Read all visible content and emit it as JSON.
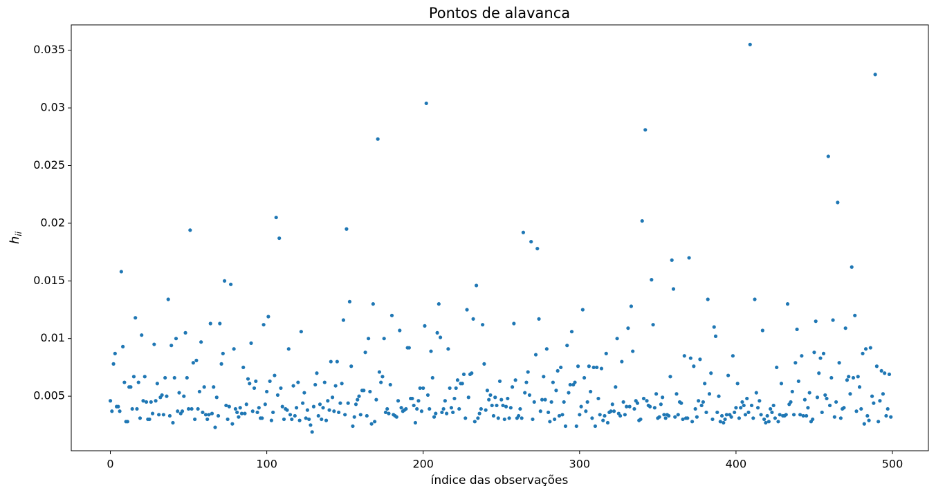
{
  "chart_data": {
    "type": "scatter",
    "title": "Pontos de alavanca",
    "xlabel": "índice das observações",
    "ylabel": "h",
    "ylabel_sub": "ii",
    "color": "#1f77b4",
    "xlim": [
      -25,
      523
    ],
    "ylim": [
      0.00027,
      0.0372
    ],
    "xticks": [
      0,
      100,
      200,
      300,
      400,
      500
    ],
    "yticks": [
      0.005,
      0.01,
      {
        "value": 0.015,
        "label": "0.015"
      },
      0.02,
      0.025,
      0.03,
      0.035
    ],
    "x": [
      0,
      1,
      2,
      3,
      4,
      5,
      6,
      7,
      8,
      9,
      10,
      11,
      12,
      13,
      14,
      15,
      16,
      17,
      18,
      19,
      20,
      21,
      22,
      23,
      24,
      25,
      26,
      27,
      28,
      29,
      30,
      31,
      32,
      33,
      34,
      35,
      36,
      37,
      38,
      39,
      40,
      41,
      42,
      43,
      44,
      45,
      46,
      47,
      48,
      49,
      50,
      51,
      52,
      53,
      54,
      55,
      56,
      57,
      58,
      59,
      60,
      61,
      62,
      63,
      64,
      65,
      66,
      67,
      68,
      69,
      70,
      71,
      72,
      73,
      74,
      75,
      76,
      77,
      78,
      79,
      80,
      81,
      82,
      83,
      84,
      85,
      86,
      87,
      88,
      89,
      90,
      91,
      92,
      93,
      94,
      95,
      96,
      97,
      98,
      99,
      100,
      101,
      102,
      103,
      104,
      105,
      106,
      107,
      108,
      109,
      110,
      111,
      112,
      113,
      114,
      115,
      116,
      117,
      118,
      119,
      120,
      121,
      122,
      123,
      124,
      125,
      126,
      127,
      128,
      129,
      130,
      131,
      132,
      133,
      134,
      135,
      136,
      137,
      138,
      139,
      140,
      141,
      142,
      143,
      144,
      145,
      146,
      147,
      148,
      149,
      150,
      151,
      152,
      153,
      154,
      155,
      156,
      157,
      158,
      159,
      160,
      161,
      162,
      163,
      164,
      165,
      166,
      167,
      168,
      169,
      170,
      171,
      172,
      173,
      174,
      175,
      176,
      177,
      178,
      179,
      180,
      181,
      182,
      183,
      184,
      185,
      186,
      187,
      188,
      189,
      190,
      191,
      192,
      193,
      194,
      195,
      196,
      197,
      198,
      199,
      200,
      201,
      202,
      203,
      204,
      205,
      206,
      207,
      208,
      209,
      210,
      211,
      212,
      213,
      214,
      215,
      216,
      217,
      218,
      219,
      220,
      221,
      222,
      223,
      224,
      225,
      226,
      227,
      228,
      229,
      230,
      231,
      232,
      233,
      234,
      235,
      236,
      237,
      238,
      239,
      240,
      241,
      242,
      243,
      244,
      245,
      246,
      247,
      248,
      249,
      250,
      251,
      252,
      253,
      254,
      255,
      256,
      257,
      258,
      259,
      260,
      261,
      262,
      263,
      264,
      265,
      266,
      267,
      268,
      269,
      270,
      271,
      272,
      273,
      274,
      275,
      276,
      277,
      278,
      279,
      280,
      281,
      282,
      283,
      284,
      285,
      286,
      287,
      288,
      289,
      290,
      291,
      292,
      293,
      294,
      295,
      296,
      297,
      298,
      299,
      300,
      301,
      302,
      303,
      304,
      305,
      306,
      307,
      308,
      309,
      310,
      311,
      312,
      313,
      314,
      315,
      316,
      317,
      318,
      319,
      320,
      321,
      322,
      323,
      324,
      325,
      326,
      327,
      328,
      329,
      330,
      331,
      332,
      333,
      334,
      335,
      336,
      337,
      338,
      339,
      340,
      341,
      342,
      343,
      344,
      345,
      346,
      347,
      348,
      349,
      350,
      351,
      352,
      353,
      354,
      355,
      356,
      357,
      358,
      359,
      360,
      361,
      362,
      363,
      364,
      365,
      366,
      367,
      368,
      369,
      370,
      371,
      372,
      373,
      374,
      375,
      376,
      377,
      378,
      379,
      380,
      381,
      382,
      383,
      384,
      385,
      386,
      387,
      388,
      389,
      390,
      391,
      392,
      393,
      394,
      395,
      396,
      397,
      398,
      399,
      400,
      401,
      402,
      403,
      404,
      405,
      406,
      407,
      408,
      409,
      410,
      411,
      412,
      413,
      414,
      415,
      416,
      417,
      418,
      419,
      420,
      421,
      422,
      423,
      424,
      425,
      426,
      427,
      428,
      429,
      430,
      431,
      432,
      433,
      434,
      435,
      436,
      437,
      438,
      439,
      440,
      441,
      442,
      443,
      444,
      445,
      446,
      447,
      448,
      449,
      450,
      451,
      452,
      453,
      454,
      455,
      456,
      457,
      458,
      459,
      460,
      461,
      462,
      463,
      464,
      465,
      466,
      467,
      468,
      469,
      470,
      471,
      472,
      473,
      474,
      475,
      476,
      477,
      478,
      479,
      480,
      481,
      482,
      483,
      484,
      485,
      486,
      487,
      488,
      489,
      490,
      491,
      492,
      493,
      494,
      495,
      496,
      497,
      498,
      499
    ],
    "values": [
      0.0046,
      0.0037,
      0.0078,
      0.0087,
      0.0041,
      0.0041,
      0.0037,
      0.0158,
      0.0093,
      0.0062,
      0.0028,
      0.0028,
      0.0058,
      0.0058,
      0.0039,
      0.0067,
      0.0118,
      0.0039,
      0.0062,
      0.0031,
      0.0103,
      0.0046,
      0.0067,
      0.0045,
      0.003,
      0.003,
      0.0045,
      0.0035,
      0.0095,
      0.0046,
      0.0061,
      0.0034,
      0.0049,
      0.0051,
      0.0034,
      0.0066,
      0.005,
      0.0134,
      0.0033,
      0.0094,
      0.0027,
      0.0066,
      0.01,
      0.0037,
      0.0053,
      0.0035,
      0.0037,
      0.005,
      0.0105,
      0.0066,
      0.0039,
      0.0194,
      0.0039,
      0.0079,
      0.003,
      0.0081,
      0.0039,
      0.0054,
      0.0097,
      0.0036,
      0.0058,
      0.0034,
      0.003,
      0.0034,
      0.0113,
      0.0035,
      0.0058,
      0.0023,
      0.0049,
      0.0033,
      0.0113,
      0.0078,
      0.0087,
      0.015,
      0.0042,
      0.003,
      0.0041,
      0.0147,
      0.0026,
      0.0091,
      0.0039,
      0.0036,
      0.0032,
      0.004,
      0.0035,
      0.0075,
      0.0035,
      0.0043,
      0.0065,
      0.0061,
      0.0096,
      0.0037,
      0.0057,
      0.0063,
      0.0036,
      0.004,
      0.0031,
      0.0031,
      0.0112,
      0.0043,
      0.0054,
      0.0119,
      0.0063,
      0.0029,
      0.0036,
      0.0068,
      0.0205,
      0.0051,
      0.0187,
      0.0057,
      0.0041,
      0.003,
      0.0039,
      0.0038,
      0.0091,
      0.0034,
      0.003,
      0.0059,
      0.0033,
      0.004,
      0.0062,
      0.0029,
      0.0106,
      0.0044,
      0.0053,
      0.0031,
      0.0038,
      0.003,
      0.0025,
      0.0019,
      0.0041,
      0.006,
      0.007,
      0.0033,
      0.0043,
      0.003,
      0.004,
      0.0062,
      0.0029,
      0.0046,
      0.0038,
      0.008,
      0.0049,
      0.0037,
      0.0059,
      0.008,
      0.0036,
      0.0044,
      0.0061,
      0.0116,
      0.0034,
      0.0195,
      0.0044,
      0.0132,
      0.0076,
      0.0024,
      0.0032,
      0.0043,
      0.0047,
      0.005,
      0.0034,
      0.0055,
      0.0055,
      0.0088,
      0.0033,
      0.01,
      0.0054,
      0.0026,
      0.013,
      0.0028,
      0.0047,
      0.0273,
      0.0071,
      0.0062,
      0.0067,
      0.01,
      0.0036,
      0.0039,
      0.0035,
      0.006,
      0.012,
      0.0034,
      0.0033,
      0.0032,
      0.0046,
      0.0107,
      0.004,
      0.0037,
      0.0038,
      0.0039,
      0.0092,
      0.0092,
      0.0048,
      0.0048,
      0.0042,
      0.0027,
      0.0039,
      0.0046,
      0.0057,
      0.0037,
      0.0057,
      0.0111,
      0.0304,
      0.0051,
      0.0039,
      0.0089,
      0.0066,
      0.0032,
      0.0035,
      0.0105,
      0.013,
      0.0101,
      0.0036,
      0.0039,
      0.0046,
      0.0035,
      0.0091,
      0.0057,
      0.004,
      0.0036,
      0.0048,
      0.0057,
      0.0064,
      0.0039,
      0.0061,
      0.0061,
      0.0069,
      0.0031,
      0.0125,
      0.0049,
      0.0069,
      0.007,
      0.0117,
      0.0028,
      0.0146,
      0.0031,
      0.0035,
      0.0039,
      0.0112,
      0.0078,
      0.0038,
      0.0055,
      0.0047,
      0.0051,
      0.0042,
      0.0033,
      0.0049,
      0.0042,
      0.0031,
      0.0063,
      0.0047,
      0.0042,
      0.003,
      0.0041,
      0.0048,
      0.0031,
      0.004,
      0.0058,
      0.0113,
      0.0064,
      0.0031,
      0.0033,
      0.0039,
      0.0031,
      0.0192,
      0.0053,
      0.0062,
      0.0071,
      0.0051,
      0.0184,
      0.003,
      0.0045,
      0.0086,
      0.0178,
      0.0117,
      0.0037,
      0.0047,
      0.0067,
      0.0047,
      0.0091,
      0.0036,
      0.0028,
      0.0045,
      0.0062,
      0.003,
      0.0055,
      0.0072,
      0.0033,
      0.0075,
      0.0034,
      0.0045,
      0.0024,
      0.0094,
      0.0053,
      0.006,
      0.0106,
      0.006,
      0.0062,
      0.0024,
      0.0076,
      0.0034,
      0.0041,
      0.0125,
      0.0066,
      0.0037,
      0.0045,
      0.0076,
      0.0054,
      0.0031,
      0.0075,
      0.0024,
      0.0075,
      0.0048,
      0.0034,
      0.0074,
      0.0029,
      0.0033,
      0.0087,
      0.0027,
      0.0036,
      0.0037,
      0.0043,
      0.0037,
      0.0058,
      0.01,
      0.0035,
      0.0033,
      0.008,
      0.0045,
      0.0034,
      0.0041,
      0.0109,
      0.0041,
      0.0128,
      0.0089,
      0.0039,
      0.0046,
      0.0044,
      0.0029,
      0.003,
      0.0202,
      0.0048,
      0.0281,
      0.0046,
      0.0042,
      0.0041,
      0.0151,
      0.0112,
      0.004,
      0.0052,
      0.0031,
      0.0032,
      0.0043,
      0.0049,
      0.0034,
      0.0031,
      0.0034,
      0.0033,
      0.0067,
      0.0168,
      0.0143,
      0.0032,
      0.0052,
      0.0034,
      0.0045,
      0.0044,
      0.003,
      0.0085,
      0.0031,
      0.0031,
      0.017,
      0.0083,
      0.0028,
      0.0076,
      0.0039,
      0.0032,
      0.0046,
      0.0082,
      0.0042,
      0.0045,
      0.0061,
      0.0036,
      0.0134,
      0.0052,
      0.007,
      0.003,
      0.011,
      0.0102,
      0.0036,
      0.005,
      0.0028,
      0.0033,
      0.0027,
      0.003,
      0.0034,
      0.0068,
      0.0034,
      0.0032,
      0.0085,
      0.0036,
      0.004,
      0.0061,
      0.0031,
      0.004,
      0.0045,
      0.0042,
      0.0034,
      0.0048,
      0.0036,
      0.0355,
      0.0042,
      0.0031,
      0.0134,
      0.0053,
      0.004,
      0.0046,
      0.0034,
      0.0107,
      0.003,
      0.0027,
      0.0033,
      0.0028,
      0.0039,
      0.0036,
      0.0042,
      0.0031,
      0.0075,
      0.0028,
      0.0034,
      0.0061,
      0.0033,
      0.0033,
      0.0034,
      0.013,
      0.0043,
      0.0045,
      0.0054,
      0.0034,
      0.0079,
      0.0108,
      0.0063,
      0.0034,
      0.0085,
      0.0033,
      0.0047,
      0.0033,
      0.004,
      0.0053,
      0.0028,
      0.003,
      0.0088,
      0.0115,
      0.0049,
      0.007,
      0.0083,
      0.0036,
      0.0087,
      0.0051,
      0.0048,
      0.0258,
      0.0042,
      0.0066,
      0.0116,
      0.0032,
      0.0045,
      0.0218,
      0.0079,
      0.0031,
      0.0039,
      0.004,
      0.0109,
      0.0064,
      0.0067,
      0.0052,
      0.0162,
      0.0066,
      0.012,
      0.0037,
      0.0067,
      0.0058,
      0.0039,
      0.0087,
      0.0026,
      0.0091,
      0.0033,
      0.0029,
      0.0092,
      0.005,
      0.0044,
      0.0329,
      0.0076,
      0.0028,
      0.0046,
      0.0072,
      0.0052,
      0.007,
      0.0033,
      0.0039,
      0.0069,
      0.0032
    ]
  }
}
